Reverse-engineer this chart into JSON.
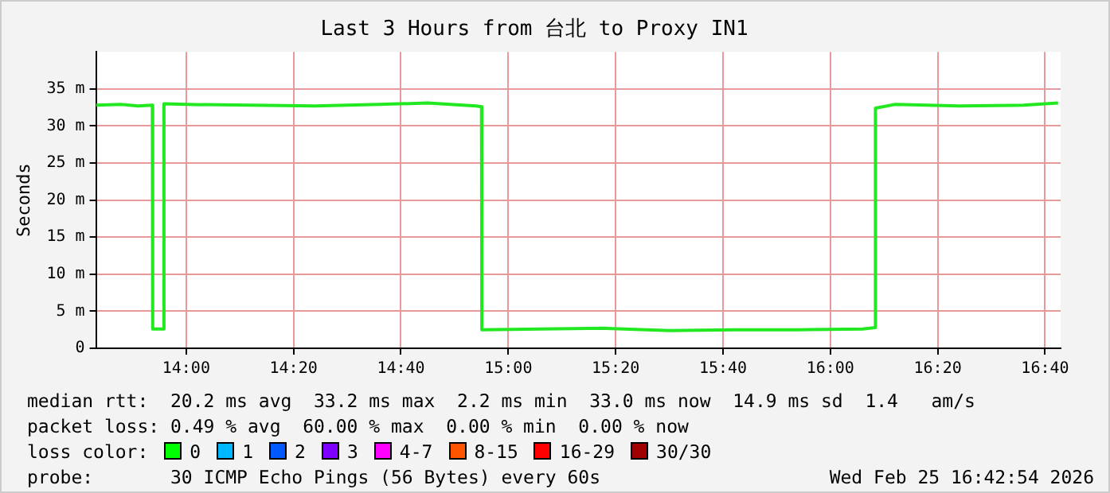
{
  "chart_data": {
    "type": "line",
    "title": "Last 3 Hours from 台北 to Proxy IN1",
    "ylabel": "Seconds",
    "x": [
      13.72,
      13.8,
      13.85,
      13.895,
      13.896,
      13.93,
      13.931,
      14.0,
      14.2,
      14.4,
      14.6,
      14.75,
      14.9,
      14.917,
      14.918,
      15.1,
      15.3,
      15.5,
      15.7,
      15.9,
      16.1,
      16.139,
      16.14,
      16.2,
      16.4,
      16.6,
      16.707
    ],
    "series": [
      {
        "color": "#22e822",
        "values": [
          32.8,
          32.9,
          32.7,
          32.8,
          2.6,
          2.6,
          33.0,
          32.9,
          32.8,
          32.7,
          32.9,
          33.1,
          32.7,
          32.6,
          2.5,
          2.6,
          2.7,
          2.4,
          2.5,
          2.5,
          2.6,
          2.8,
          32.4,
          32.9,
          32.7,
          32.8,
          33.1
        ]
      }
    ],
    "xlim": [
      13.72,
      16.715
    ],
    "xticks": [
      {
        "value": 14,
        "label": "14:00"
      },
      {
        "value": 14.3333,
        "label": "14:20"
      },
      {
        "value": 14.6667,
        "label": "14:40"
      },
      {
        "value": 15,
        "label": "15:00"
      },
      {
        "value": 15.3333,
        "label": "15:20"
      },
      {
        "value": 15.6667,
        "label": "15:40"
      },
      {
        "value": 16,
        "label": "16:00"
      },
      {
        "value": 16.3333,
        "label": "16:20"
      },
      {
        "value": 16.6667,
        "label": "16:40"
      }
    ],
    "ylim": [
      0,
      40
    ],
    "yticks": [
      0,
      {
        "value": 5,
        "label": "5 m"
      },
      {
        "value": 10,
        "label": "10 m"
      },
      {
        "value": 15,
        "label": "15 m"
      },
      {
        "value": 20,
        "label": "20 m"
      },
      {
        "value": 25,
        "label": "25 m"
      },
      {
        "value": 30,
        "label": "30 m"
      },
      {
        "value": 35,
        "label": "35 m"
      }
    ],
    "grid": true,
    "legend": false,
    "marker": "none",
    "line_style": "solid",
    "annotations": [
      "median rtt:  20.2 ms avg  33.2 ms max  2.2 ms min  33.0 ms now  14.9 ms sd  1.4   am/s",
      "packet loss: 0.49 % avg  60.00 % max  0.00 % min  0.00 % now",
      "loss color:",
      "0",
      "1",
      "2",
      "3",
      "4-7",
      "8-15",
      "16-29",
      "30/30",
      "probe:       30 ICMP Echo Pings (56 Bytes) every 60s",
      "Wed Feb 25 16:42:54 2026"
    ]
  }
}
